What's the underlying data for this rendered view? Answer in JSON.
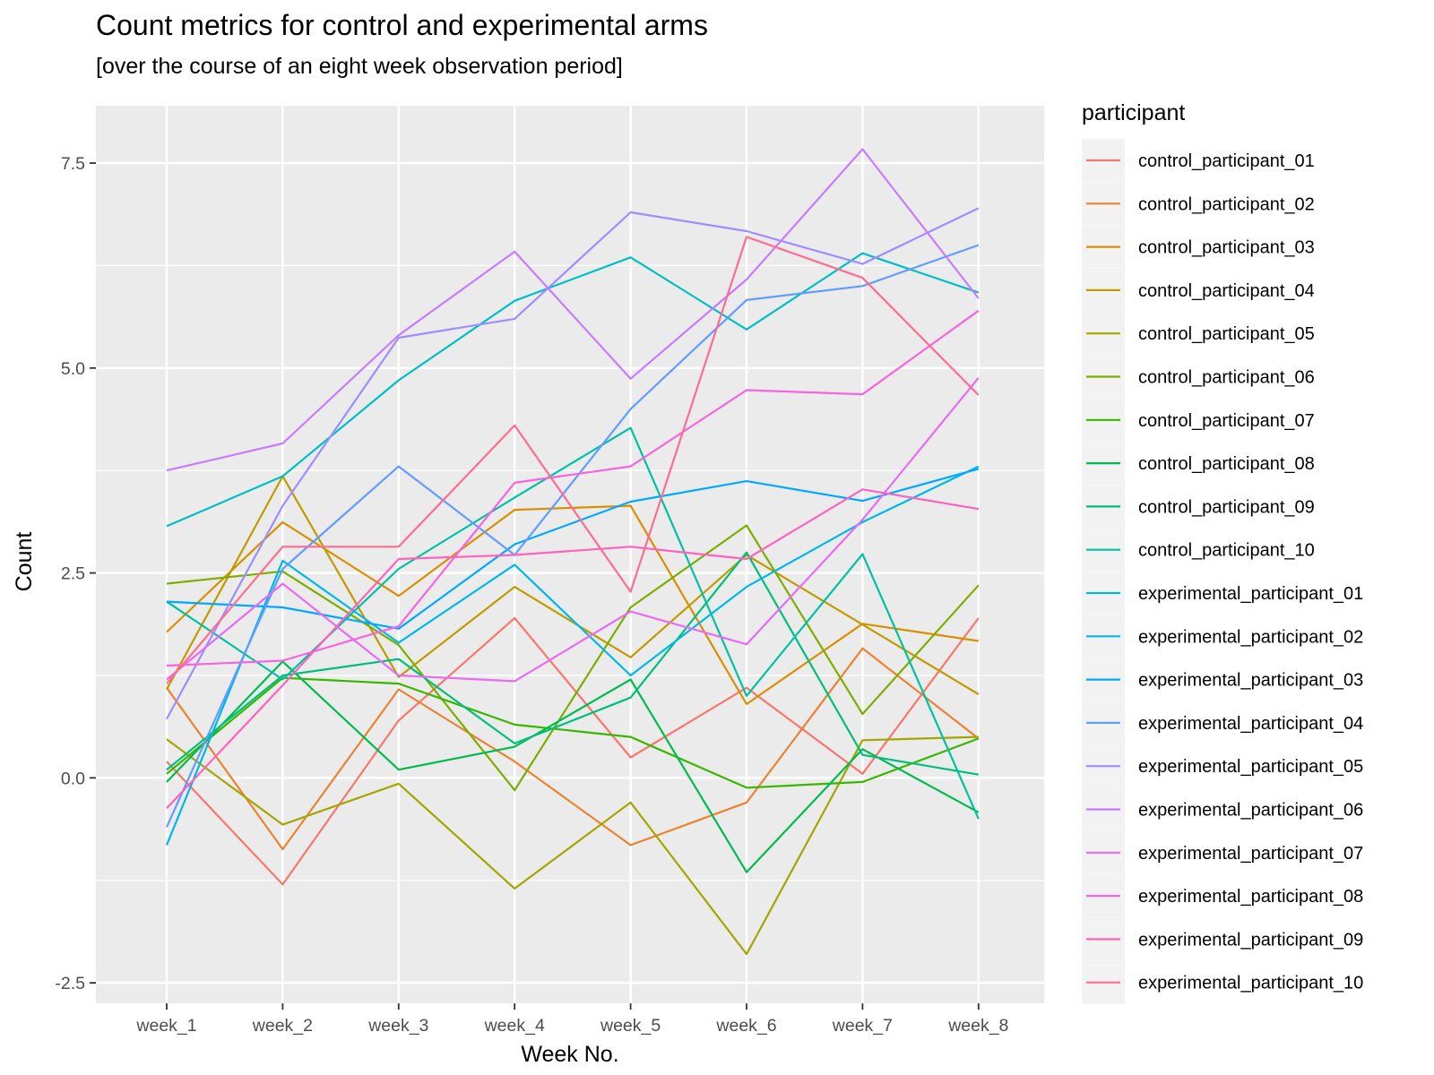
{
  "chart_data": {
    "type": "line",
    "title": "Count metrics for control and experimental arms",
    "subtitle": "[over the course of an eight week observation period]",
    "xlabel": "Week No.",
    "ylabel": "Count",
    "categories": [
      "week_1",
      "week_2",
      "week_3",
      "week_4",
      "week_5",
      "week_6",
      "week_7",
      "week_8"
    ],
    "ylim": [
      -2.75,
      8.2
    ],
    "yticks": [
      -2.5,
      0,
      2.5,
      5,
      7.5
    ],
    "ytick_labels": [
      "-2.5",
      "0.0",
      "2.5",
      "5.0",
      "7.5"
    ],
    "grid": true,
    "legend_title": "participant",
    "legend_position": "right",
    "series": [
      {
        "name": "control_participant_01",
        "color": "#F8766D",
        "values": [
          0.2,
          -1.3,
          0.7,
          1.95,
          0.25,
          1.1,
          0.05,
          1.95
        ]
      },
      {
        "name": "control_participant_02",
        "color": "#EA8331",
        "values": [
          1.1,
          -0.87,
          1.08,
          0.2,
          -0.82,
          -0.3,
          1.58,
          0.48
        ]
      },
      {
        "name": "control_participant_03",
        "color": "#D89000",
        "values": [
          1.78,
          3.12,
          2.22,
          3.27,
          3.32,
          0.9,
          1.88,
          1.67
        ]
      },
      {
        "name": "control_participant_04",
        "color": "#C09B00",
        "values": [
          1.08,
          3.68,
          1.23,
          2.33,
          1.47,
          2.72,
          1.87,
          1.02
        ]
      },
      {
        "name": "control_participant_05",
        "color": "#A3A500",
        "values": [
          0.47,
          -0.57,
          -0.07,
          -1.35,
          -0.3,
          -2.15,
          0.46,
          0.5
        ]
      },
      {
        "name": "control_participant_06",
        "color": "#7CAE00",
        "values": [
          2.37,
          2.52,
          1.62,
          -0.15,
          2.08,
          3.08,
          0.78,
          2.35
        ]
      },
      {
        "name": "control_participant_07",
        "color": "#39B600",
        "values": [
          0.05,
          1.22,
          1.15,
          0.65,
          0.5,
          -0.12,
          -0.05,
          0.48
        ]
      },
      {
        "name": "control_participant_08",
        "color": "#00BB4E",
        "values": [
          -0.05,
          1.42,
          0.1,
          0.38,
          1.2,
          -1.15,
          0.35,
          -0.42
        ]
      },
      {
        "name": "control_participant_09",
        "color": "#00BF7D",
        "values": [
          0.1,
          1.25,
          1.45,
          0.42,
          0.98,
          2.75,
          0.28,
          0.04
        ]
      },
      {
        "name": "control_participant_10",
        "color": "#00C1A3",
        "values": [
          2.15,
          1.2,
          2.55,
          3.42,
          4.27,
          1.0,
          2.73,
          -0.5
        ]
      },
      {
        "name": "experimental_participant_01",
        "color": "#00BFC4",
        "values": [
          3.07,
          3.68,
          4.85,
          5.82,
          6.35,
          5.47,
          6.4,
          5.92
        ]
      },
      {
        "name": "experimental_participant_02",
        "color": "#00B8E7",
        "values": [
          -0.82,
          2.65,
          1.65,
          2.6,
          1.25,
          2.33,
          3.12,
          3.8
        ]
      },
      {
        "name": "experimental_participant_03",
        "color": "#00A9FF",
        "values": [
          2.15,
          2.08,
          1.82,
          2.85,
          3.37,
          3.62,
          3.38,
          3.77
        ]
      },
      {
        "name": "experimental_participant_04",
        "color": "#619CFF",
        "values": [
          -0.6,
          2.55,
          3.8,
          2.72,
          4.5,
          5.83,
          6.0,
          6.5
        ]
      },
      {
        "name": "experimental_participant_05",
        "color": "#9F8CFF",
        "values": [
          0.72,
          3.32,
          5.37,
          5.6,
          6.9,
          6.67,
          6.27,
          6.95
        ]
      },
      {
        "name": "experimental_participant_06",
        "color": "#C77CFF",
        "values": [
          3.75,
          4.08,
          5.4,
          6.42,
          4.87,
          6.08,
          7.67,
          5.85
        ]
      },
      {
        "name": "experimental_participant_07",
        "color": "#E76BF3",
        "values": [
          1.2,
          2.37,
          1.25,
          1.18,
          2.03,
          1.63,
          3.15,
          4.88
        ]
      },
      {
        "name": "experimental_participant_08",
        "color": "#F863DF",
        "values": [
          1.37,
          1.43,
          1.85,
          3.6,
          3.8,
          4.73,
          4.68,
          5.7
        ]
      },
      {
        "name": "experimental_participant_09",
        "color": "#FF62BC",
        "values": [
          -0.37,
          1.13,
          2.67,
          2.72,
          2.82,
          2.67,
          3.52,
          3.28
        ]
      },
      {
        "name": "experimental_participant_10",
        "color": "#FF6C91",
        "values": [
          1.15,
          2.82,
          2.82,
          4.3,
          2.27,
          6.6,
          6.1,
          4.67
        ]
      }
    ]
  }
}
